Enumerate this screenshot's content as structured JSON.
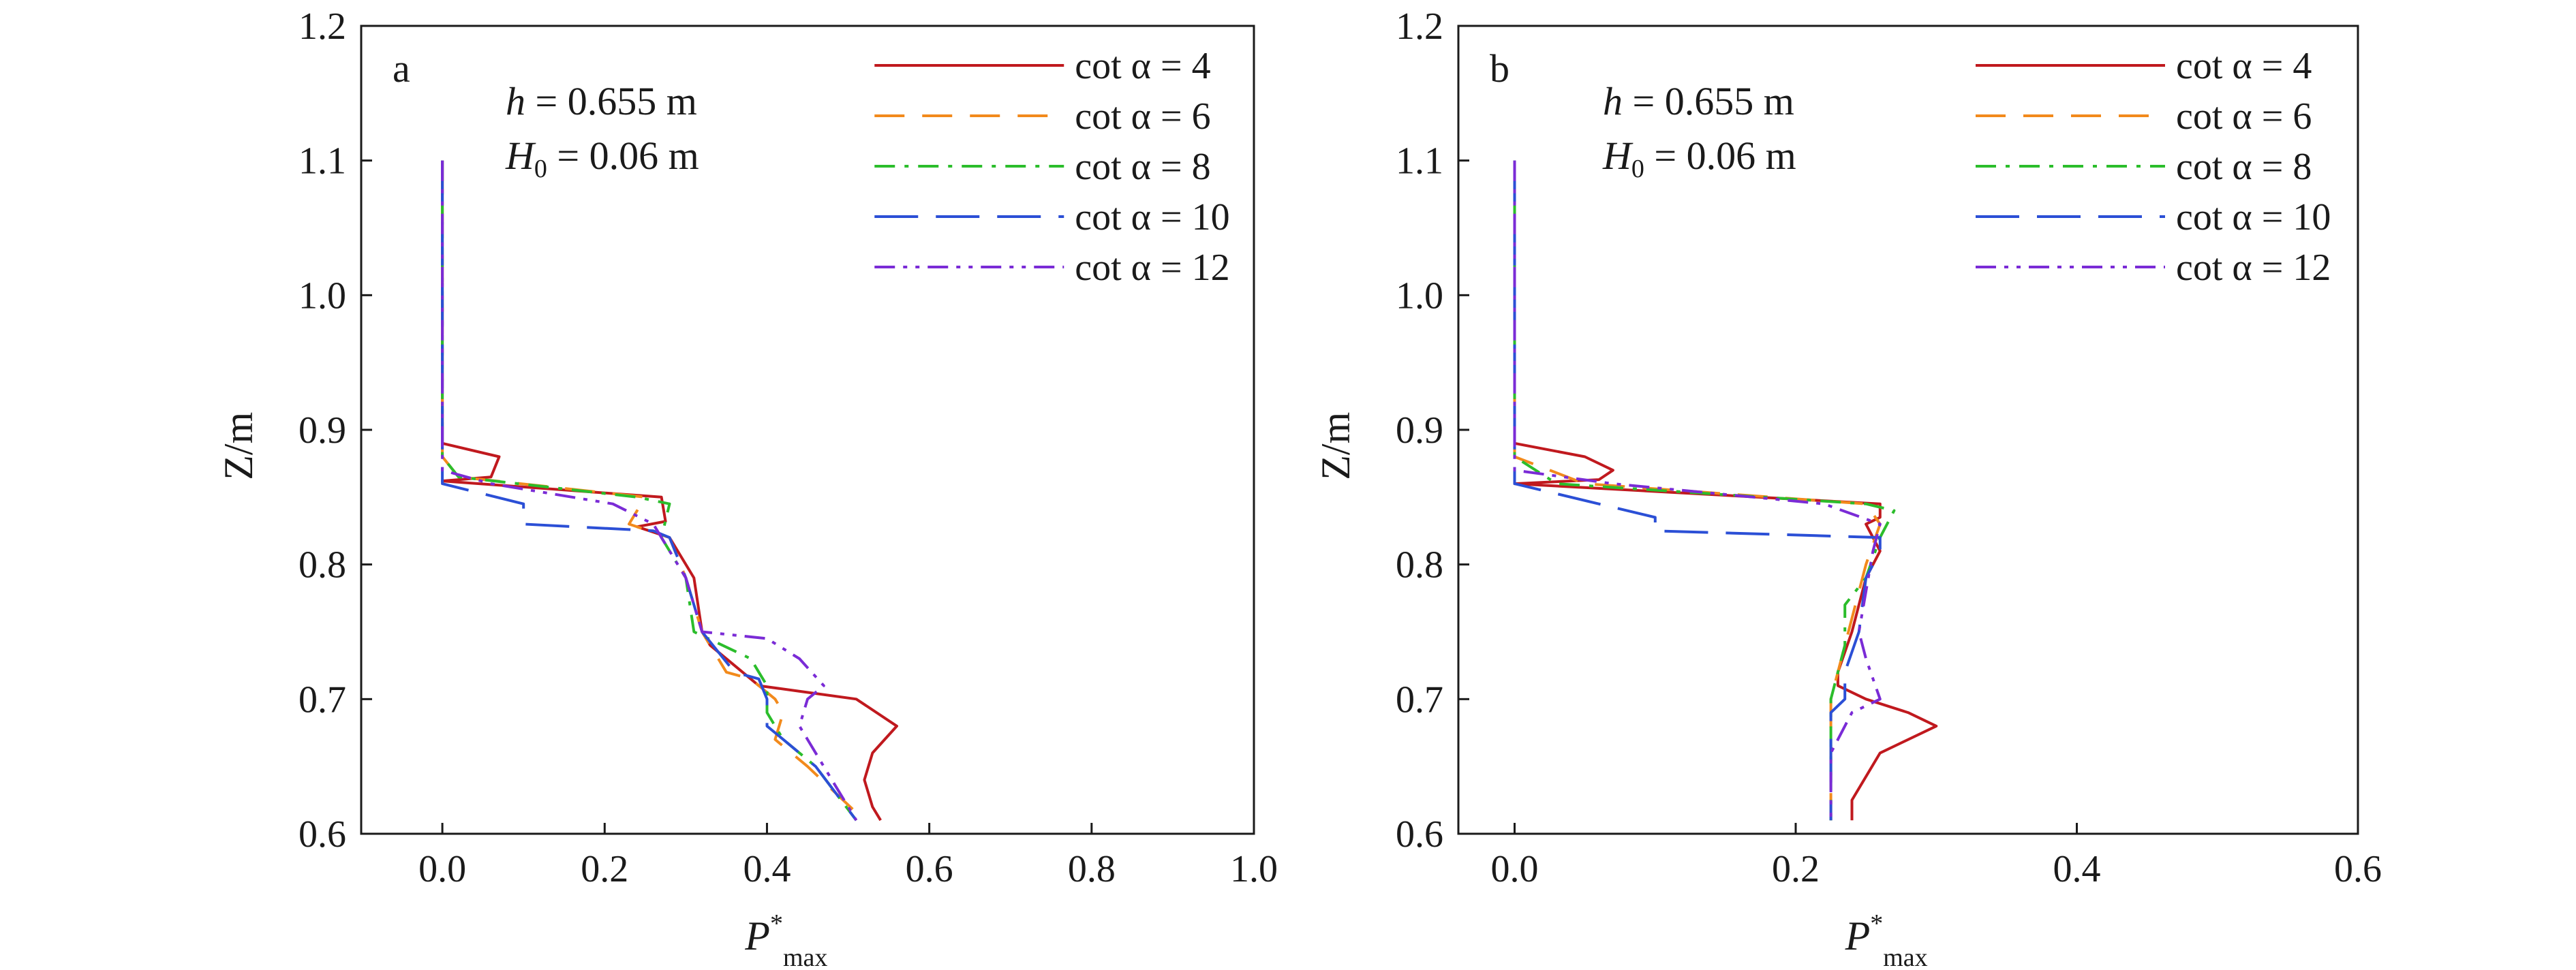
{
  "chart_data": [
    {
      "type": "line",
      "panel_label": "a",
      "annotations": [
        "h = 0.655 m",
        "H0 = 0.06 m"
      ],
      "annotation_parts": {
        "line1_var": "h",
        "line1_rest": " = 0.655 m",
        "line2_var": "H",
        "line2_sub": "0",
        "line2_rest": " = 0.06 m"
      },
      "xlabel": {
        "main": "P",
        "sup": "*",
        "sub": "max"
      },
      "ylabel": "Z/m",
      "xlim": [
        -0.1,
        1.0
      ],
      "ylim": [
        0.6,
        1.2
      ],
      "xticks": [
        "0.0",
        "0.2",
        "0.4",
        "0.6",
        "0.8",
        "1.0"
      ],
      "xtick_values": [
        0.0,
        0.2,
        0.4,
        0.6,
        0.8,
        1.0
      ],
      "yticks": [
        "0.6",
        "0.7",
        "0.8",
        "0.9",
        "1.0",
        "1.1",
        "1.2"
      ],
      "ytick_values": [
        0.6,
        0.7,
        0.8,
        0.9,
        1.0,
        1.1,
        1.2
      ],
      "legend_position": "top-right",
      "grid": false,
      "series": [
        {
          "name": "cot α = 4",
          "color": "#c0191e",
          "dash": "solid",
          "points": [
            [
              0.0,
              1.1
            ],
            [
              0.0,
              0.89
            ],
            [
              0.07,
              0.88
            ],
            [
              0.06,
              0.865
            ],
            [
              0.0,
              0.862
            ],
            [
              0.27,
              0.85
            ],
            [
              0.275,
              0.832
            ],
            [
              0.24,
              0.828
            ],
            [
              0.28,
              0.82
            ],
            [
              0.31,
              0.79
            ],
            [
              0.32,
              0.75
            ],
            [
              0.33,
              0.74
            ],
            [
              0.37,
              0.72
            ],
            [
              0.39,
              0.71
            ],
            [
              0.51,
              0.7
            ],
            [
              0.56,
              0.68
            ],
            [
              0.53,
              0.66
            ],
            [
              0.52,
              0.64
            ],
            [
              0.53,
              0.62
            ],
            [
              0.54,
              0.61
            ]
          ]
        },
        {
          "name": "cot α = 6",
          "color": "#f28a1c",
          "dash": "long-dash",
          "points": [
            [
              0.0,
              1.1
            ],
            [
              0.0,
              0.88
            ],
            [
              0.02,
              0.865
            ],
            [
              0.25,
              0.85
            ],
            [
              0.23,
              0.83
            ],
            [
              0.28,
              0.82
            ],
            [
              0.3,
              0.79
            ],
            [
              0.32,
              0.75
            ],
            [
              0.35,
              0.72
            ],
            [
              0.38,
              0.715
            ],
            [
              0.41,
              0.7
            ],
            [
              0.42,
              0.69
            ],
            [
              0.41,
              0.67
            ],
            [
              0.45,
              0.65
            ],
            [
              0.52,
              0.61
            ]
          ]
        },
        {
          "name": "cot α = 8",
          "color": "#2bbd2b",
          "dash": "dash-dot",
          "points": [
            [
              0.0,
              1.1
            ],
            [
              0.0,
              0.88
            ],
            [
              0.02,
              0.865
            ],
            [
              0.24,
              0.85
            ],
            [
              0.28,
              0.845
            ],
            [
              0.27,
              0.82
            ],
            [
              0.3,
              0.79
            ],
            [
              0.31,
              0.75
            ],
            [
              0.38,
              0.73
            ],
            [
              0.39,
              0.72
            ],
            [
              0.4,
              0.71
            ],
            [
              0.4,
              0.69
            ],
            [
              0.42,
              0.67
            ],
            [
              0.46,
              0.65
            ],
            [
              0.51,
              0.61
            ]
          ]
        },
        {
          "name": "cot α = 10",
          "color": "#2b4fd6",
          "dash": "long-long-dash",
          "points": [
            [
              0.0,
              1.1
            ],
            [
              0.0,
              0.86
            ],
            [
              0.1,
              0.845
            ],
            [
              0.1,
              0.83
            ],
            [
              0.26,
              0.825
            ],
            [
              0.28,
              0.82
            ],
            [
              0.3,
              0.79
            ],
            [
              0.32,
              0.75
            ],
            [
              0.36,
              0.72
            ],
            [
              0.39,
              0.715
            ],
            [
              0.4,
              0.7
            ],
            [
              0.4,
              0.68
            ],
            [
              0.42,
              0.67
            ],
            [
              0.46,
              0.65
            ],
            [
              0.51,
              0.61
            ]
          ]
        },
        {
          "name": "cot α = 12",
          "color": "#7a2bd6",
          "dash": "dash-dot-dot",
          "points": [
            [
              0.0,
              1.1
            ],
            [
              0.0,
              0.87
            ],
            [
              0.06,
              0.86
            ],
            [
              0.21,
              0.845
            ],
            [
              0.26,
              0.83
            ],
            [
              0.27,
              0.82
            ],
            [
              0.3,
              0.79
            ],
            [
              0.32,
              0.75
            ],
            [
              0.4,
              0.745
            ],
            [
              0.44,
              0.73
            ],
            [
              0.47,
              0.71
            ],
            [
              0.45,
              0.7
            ],
            [
              0.44,
              0.68
            ],
            [
              0.45,
              0.67
            ],
            [
              0.47,
              0.65
            ],
            [
              0.51,
              0.61
            ]
          ]
        }
      ]
    },
    {
      "type": "line",
      "panel_label": "b",
      "annotations": [
        "h = 0.655 m",
        "H0 = 0.06 m"
      ],
      "annotation_parts": {
        "line1_var": "h",
        "line1_rest": " = 0.655 m",
        "line2_var": "H",
        "line2_sub": "0",
        "line2_rest": " = 0.06 m"
      },
      "xlabel": {
        "main": "P",
        "sup": "*",
        "sub": "max"
      },
      "ylabel": "Z/m",
      "xlim": [
        -0.04,
        0.6
      ],
      "ylim": [
        0.6,
        1.2
      ],
      "xticks": [
        "0.0",
        "0.2",
        "0.4",
        "0.6"
      ],
      "xtick_values": [
        0.0,
        0.2,
        0.4,
        0.6
      ],
      "yticks": [
        "0.6",
        "0.7",
        "0.8",
        "0.9",
        "1.0",
        "1.1",
        "1.2"
      ],
      "ytick_values": [
        0.6,
        0.7,
        0.8,
        0.9,
        1.0,
        1.1,
        1.2
      ],
      "legend_position": "top-right",
      "grid": false,
      "series": [
        {
          "name": "cot α = 4",
          "color": "#c0191e",
          "dash": "solid",
          "points": [
            [
              0.0,
              1.1
            ],
            [
              0.0,
              0.89
            ],
            [
              0.05,
              0.88
            ],
            [
              0.07,
              0.87
            ],
            [
              0.06,
              0.863
            ],
            [
              0.0,
              0.86
            ],
            [
              0.26,
              0.845
            ],
            [
              0.26,
              0.835
            ],
            [
              0.25,
              0.83
            ],
            [
              0.26,
              0.81
            ],
            [
              0.25,
              0.79
            ],
            [
              0.24,
              0.75
            ],
            [
              0.23,
              0.72
            ],
            [
              0.23,
              0.71
            ],
            [
              0.25,
              0.7
            ],
            [
              0.28,
              0.69
            ],
            [
              0.3,
              0.68
            ],
            [
              0.26,
              0.66
            ],
            [
              0.24,
              0.625
            ],
            [
              0.24,
              0.61
            ]
          ]
        },
        {
          "name": "cot α = 6",
          "color": "#f28a1c",
          "dash": "long-dash",
          "points": [
            [
              0.0,
              1.1
            ],
            [
              0.0,
              0.88
            ],
            [
              0.05,
              0.86
            ],
            [
              0.25,
              0.845
            ],
            [
              0.26,
              0.83
            ],
            [
              0.25,
              0.8
            ],
            [
              0.24,
              0.76
            ],
            [
              0.23,
              0.72
            ],
            [
              0.225,
              0.7
            ],
            [
              0.225,
              0.65
            ],
            [
              0.225,
              0.61
            ]
          ]
        },
        {
          "name": "cot α = 8",
          "color": "#2bbd2b",
          "dash": "dash-dot",
          "points": [
            [
              0.0,
              1.1
            ],
            [
              0.0,
              0.88
            ],
            [
              0.03,
              0.86
            ],
            [
              0.25,
              0.845
            ],
            [
              0.27,
              0.84
            ],
            [
              0.26,
              0.82
            ],
            [
              0.25,
              0.79
            ],
            [
              0.235,
              0.77
            ],
            [
              0.235,
              0.74
            ],
            [
              0.23,
              0.72
            ],
            [
              0.225,
              0.7
            ],
            [
              0.225,
              0.66
            ],
            [
              0.225,
              0.61
            ]
          ]
        },
        {
          "name": "cot α = 10",
          "color": "#2b4fd6",
          "dash": "long-long-dash",
          "points": [
            [
              0.0,
              1.1
            ],
            [
              0.0,
              0.86
            ],
            [
              0.1,
              0.835
            ],
            [
              0.1,
              0.825
            ],
            [
              0.26,
              0.82
            ],
            [
              0.26,
              0.81
            ],
            [
              0.25,
              0.79
            ],
            [
              0.245,
              0.75
            ],
            [
              0.235,
              0.72
            ],
            [
              0.235,
              0.7
            ],
            [
              0.225,
              0.69
            ],
            [
              0.225,
              0.65
            ],
            [
              0.225,
              0.61
            ]
          ]
        },
        {
          "name": "cot α = 12",
          "color": "#7a2bd6",
          "dash": "dash-dot-dot",
          "points": [
            [
              0.0,
              1.1
            ],
            [
              0.0,
              0.87
            ],
            [
              0.07,
              0.86
            ],
            [
              0.22,
              0.845
            ],
            [
              0.26,
              0.83
            ],
            [
              0.255,
              0.81
            ],
            [
              0.25,
              0.78
            ],
            [
              0.245,
              0.75
            ],
            [
              0.25,
              0.73
            ],
            [
              0.26,
              0.7
            ],
            [
              0.24,
              0.69
            ],
            [
              0.225,
              0.66
            ],
            [
              0.225,
              0.61
            ]
          ]
        }
      ]
    }
  ]
}
